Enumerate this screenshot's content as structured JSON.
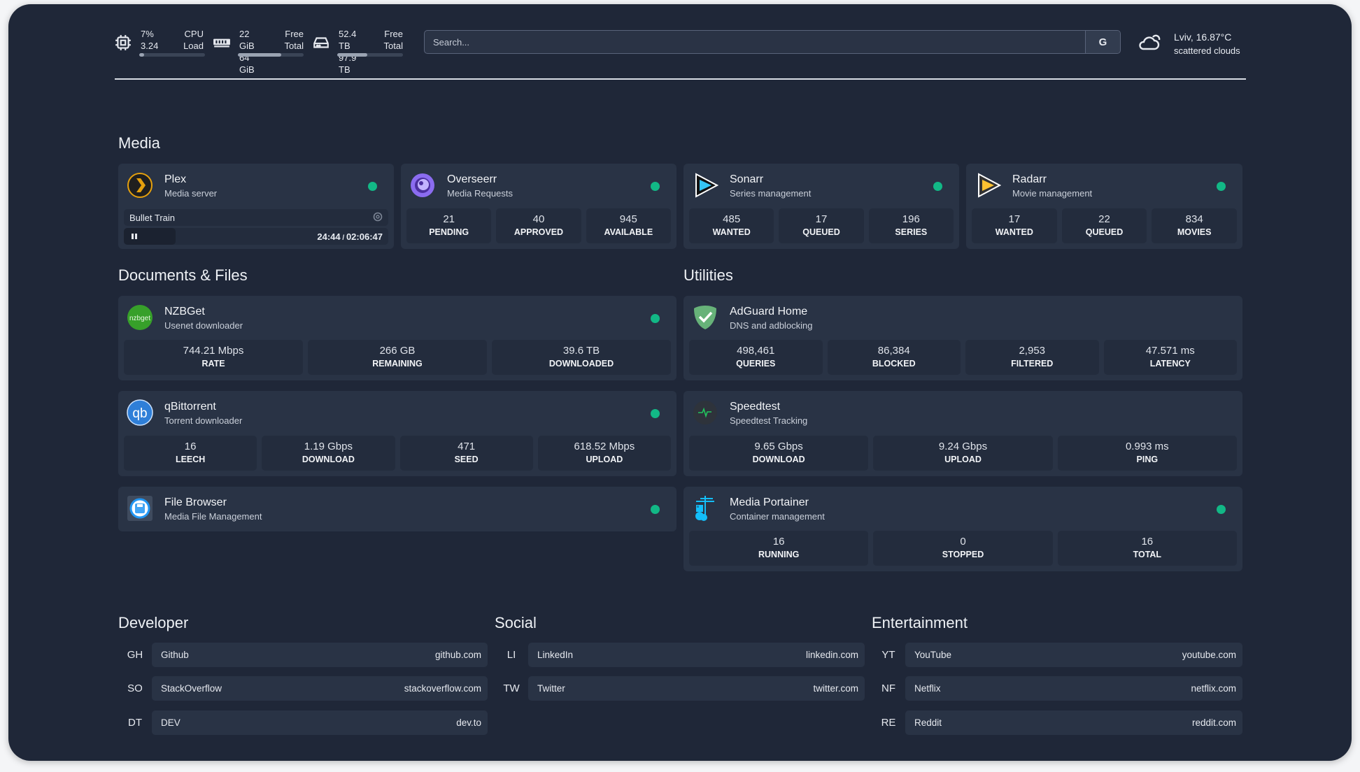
{
  "header": {
    "cpu": {
      "icon": "cpu-icon",
      "usage": "7%",
      "load": "3.24",
      "label1": "CPU",
      "label2": "Load",
      "fill": 0.07
    },
    "memory": {
      "icon": "memory-icon",
      "free": "22 GiB",
      "total": "64 GiB",
      "label1": "Free",
      "label2": "Total",
      "fill": 0.66
    },
    "disk": {
      "icon": "hard-drive-icon",
      "free": "52.4 TB",
      "total": "97.9 TB",
      "label1": "Free",
      "label2": "Total",
      "fill": 0.46
    },
    "search": {
      "placeholder": "Search...",
      "button": "G"
    },
    "weather": {
      "icon": "cloud-sun-icon",
      "location_temp": "Lviv, 16.87°C",
      "condition": "scattered clouds"
    }
  },
  "sections": {
    "media": "Media",
    "documents": "Documents & Files",
    "utilities": "Utilities",
    "developer": "Developer",
    "social": "Social",
    "entertainment": "Entertainment"
  },
  "colors": {
    "background": "#1f2738",
    "card": "#293345",
    "stat": "#232c3d",
    "status_ok": "#12b886"
  },
  "services": [
    {
      "id": "plex",
      "title": "Plex",
      "subtitle": "Media server",
      "icon": "plex-icon",
      "status": true,
      "now_playing": {
        "title": "Bullet Train",
        "position": "24:44",
        "duration": "02:06:47",
        "state": "paused",
        "progress": 0.195
      }
    },
    {
      "id": "overseerr",
      "title": "Overseerr",
      "subtitle": "Media Requests",
      "icon": "overseerr-icon",
      "status": true,
      "stats": [
        {
          "v": "21",
          "l": "PENDING"
        },
        {
          "v": "40",
          "l": "APPROVED"
        },
        {
          "v": "945",
          "l": "AVAILABLE"
        }
      ]
    },
    {
      "id": "sonarr",
      "title": "Sonarr",
      "subtitle": "Series management",
      "icon": "sonarr-icon",
      "status": true,
      "stats": [
        {
          "v": "485",
          "l": "WANTED"
        },
        {
          "v": "17",
          "l": "QUEUED"
        },
        {
          "v": "196",
          "l": "SERIES"
        }
      ]
    },
    {
      "id": "radarr",
      "title": "Radarr",
      "subtitle": "Movie management",
      "icon": "radarr-icon",
      "status": true,
      "stats": [
        {
          "v": "17",
          "l": "WANTED"
        },
        {
          "v": "22",
          "l": "QUEUED"
        },
        {
          "v": "834",
          "l": "MOVIES"
        }
      ]
    },
    {
      "id": "nzbget",
      "title": "NZBGet",
      "subtitle": "Usenet downloader",
      "icon": "nzbget-icon",
      "status": true,
      "stats": [
        {
          "v": "744.21 Mbps",
          "l": "RATE"
        },
        {
          "v": "266 GB",
          "l": "REMAINING"
        },
        {
          "v": "39.6 TB",
          "l": "DOWNLOADED"
        }
      ]
    },
    {
      "id": "qbittorrent",
      "title": "qBittorrent",
      "subtitle": "Torrent downloader",
      "icon": "qbittorrent-icon",
      "status": true,
      "stats": [
        {
          "v": "16",
          "l": "LEECH"
        },
        {
          "v": "1.19 Gbps",
          "l": "DOWNLOAD"
        },
        {
          "v": "471",
          "l": "SEED"
        },
        {
          "v": "618.52 Mbps",
          "l": "UPLOAD"
        }
      ]
    },
    {
      "id": "filebrowser",
      "title": "File Browser",
      "subtitle": "Media File Management",
      "icon": "file-browser-icon",
      "status": true
    },
    {
      "id": "adguard",
      "title": "AdGuard Home",
      "subtitle": "DNS and adblocking",
      "icon": "adguard-shield-icon",
      "status": false,
      "stats": [
        {
          "v": "498,461",
          "l": "QUERIES"
        },
        {
          "v": "86,384",
          "l": "BLOCKED"
        },
        {
          "v": "2,953",
          "l": "FILTERED"
        },
        {
          "v": "47.571 ms",
          "l": "LATENCY"
        }
      ]
    },
    {
      "id": "speedtest",
      "title": "Speedtest",
      "subtitle": "Speedtest Tracking",
      "icon": "speedtest-pulse-icon",
      "status": false,
      "stats": [
        {
          "v": "9.65 Gbps",
          "l": "DOWNLOAD"
        },
        {
          "v": "9.24 Gbps",
          "l": "UPLOAD"
        },
        {
          "v": "0.993 ms",
          "l": "PING"
        }
      ]
    },
    {
      "id": "portainer",
      "title": "Media Portainer",
      "subtitle": "Container management",
      "icon": "portainer-icon",
      "status": true,
      "stats": [
        {
          "v": "16",
          "l": "RUNNING"
        },
        {
          "v": "0",
          "l": "STOPPED"
        },
        {
          "v": "16",
          "l": "TOTAL"
        }
      ]
    }
  ],
  "bookmarks": [
    [
      {
        "abbr": "GH",
        "name": "Github",
        "url": "github.com"
      },
      {
        "abbr": "SO",
        "name": "StackOverflow",
        "url": "stackoverflow.com"
      },
      {
        "abbr": "DT",
        "name": "DEV",
        "url": "dev.to"
      }
    ],
    [
      {
        "abbr": "LI",
        "name": "LinkedIn",
        "url": "linkedin.com"
      },
      {
        "abbr": "TW",
        "name": "Twitter",
        "url": "twitter.com"
      }
    ],
    [
      {
        "abbr": "YT",
        "name": "YouTube",
        "url": "youtube.com"
      },
      {
        "abbr": "NF",
        "name": "Netflix",
        "url": "netflix.com"
      },
      {
        "abbr": "RE",
        "name": "Reddit",
        "url": "reddit.com"
      }
    ]
  ]
}
